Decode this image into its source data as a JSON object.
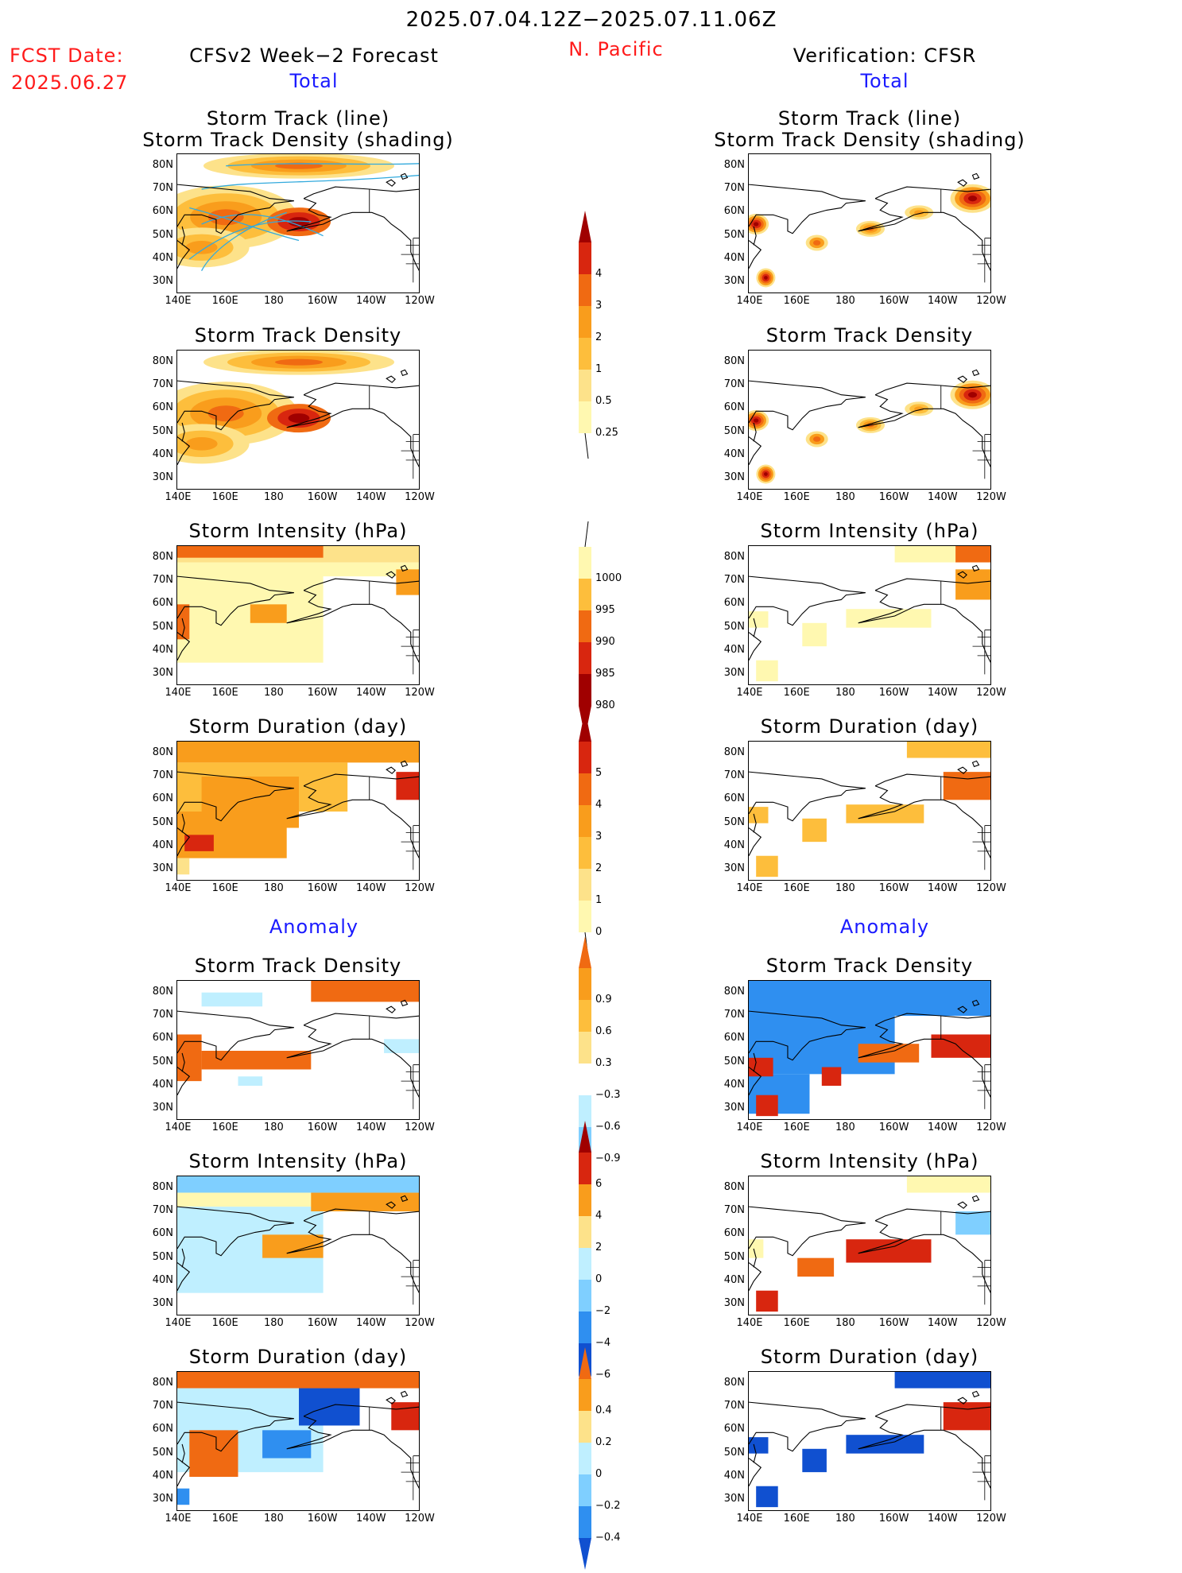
{
  "header": {
    "period": "2025.07.04.12Z−2025.07.11.06Z",
    "fcst_label": "FCST Date:",
    "fcst_date": "2025.06.27",
    "left_title": "CFSv2 Week−2 Forecast",
    "region": "N. Pacific",
    "right_title": "Verification: CFSR",
    "total_label": "Total",
    "anomaly_label": "Anomaly"
  },
  "panel_titles": {
    "track_line": "Storm Track (line)",
    "track_shading": "Storm Track Density (shading)",
    "density": "Storm Track Density",
    "intensity": "Storm Intensity (hPa)",
    "duration": "Storm Duration (day)"
  },
  "axes": {
    "lat_ticks": [
      "80N",
      "70N",
      "60N",
      "50N",
      "40N",
      "30N"
    ],
    "lon_ticks": [
      "140E",
      "160E",
      "180",
      "160W",
      "140W",
      "120W"
    ]
  },
  "colors": {
    "warm": [
      "#fff8b0",
      "#fde28a",
      "#fdbe3c",
      "#f99d1c",
      "#f06a12",
      "#d8260f",
      "#a00000"
    ],
    "cool": [
      "#bfefff",
      "#7fcfff",
      "#2f8ff0",
      "#1050d0"
    ],
    "track_line": "#33aadd"
  },
  "chart_data": [
    {
      "type": "heatmap",
      "title": "Storm Track Density",
      "subtitle": "CFSv2 Week-2 Forecast, Total",
      "colorbar_levels": [
        "0.25",
        "0.5",
        "1",
        "2",
        "3",
        "4"
      ],
      "xlim": [
        140,
        240
      ],
      "ylim": [
        25,
        85
      ],
      "features": [
        {
          "lon": 190,
          "lat": 56,
          "value": 3.5
        },
        {
          "lon": 160,
          "lat": 60,
          "value": 2.5
        },
        {
          "lon": 195,
          "lat": 80,
          "value": 2.5
        },
        {
          "lon": 150,
          "lat": 45,
          "value": 2
        }
      ]
    },
    {
      "type": "heatmap",
      "title": "Storm Track Density",
      "subtitle": "Verification: CFSR, Total",
      "colorbar_levels": [
        "0.25",
        "0.5",
        "1",
        "2",
        "3",
        "4"
      ],
      "xlim": [
        140,
        240
      ],
      "ylim": [
        25,
        85
      ],
      "features": [
        {
          "lon": 147,
          "lat": 32,
          "value": 4
        },
        {
          "lon": 143,
          "lat": 55,
          "value": 4
        },
        {
          "lon": 168,
          "lat": 47,
          "value": 3
        },
        {
          "lon": 190,
          "lat": 53,
          "value": 2.5
        },
        {
          "lon": 210,
          "lat": 60,
          "value": 2
        },
        {
          "lon": 232,
          "lat": 66,
          "value": 4
        }
      ]
    },
    {
      "type": "heatmap",
      "title": "Storm Intensity (hPa)",
      "colorbar_levels": [
        "980",
        "985",
        "990",
        "995",
        "1000"
      ],
      "xlim": [
        140,
        240
      ],
      "ylim": [
        25,
        85
      ]
    },
    {
      "type": "heatmap",
      "title": "Storm Duration (day)",
      "colorbar_levels": [
        "0",
        "1",
        "2",
        "3",
        "4",
        "5"
      ],
      "xlim": [
        140,
        240
      ],
      "ylim": [
        25,
        85
      ]
    },
    {
      "type": "heatmap",
      "title": "Storm Track Density Anomaly",
      "colorbar_levels": [
        "−0.9",
        "−0.6",
        "−0.3",
        "0.3",
        "0.6",
        "0.9"
      ],
      "xlim": [
        140,
        240
      ],
      "ylim": [
        25,
        85
      ]
    },
    {
      "type": "heatmap",
      "title": "Storm Intensity Anomaly (hPa)",
      "colorbar_levels": [
        "−6",
        "−4",
        "−2",
        "0",
        "2",
        "4",
        "6"
      ],
      "xlim": [
        140,
        240
      ],
      "ylim": [
        25,
        85
      ]
    },
    {
      "type": "heatmap",
      "title": "Storm Duration Anomaly (day)",
      "colorbar_levels": [
        "−0.4",
        "−0.2",
        "0",
        "0.2",
        "0.4"
      ],
      "xlim": [
        140,
        240
      ],
      "ylim": [
        25,
        85
      ]
    }
  ],
  "colorbars": {
    "density": [
      "4",
      "3",
      "2",
      "1",
      "0.5",
      "0.25"
    ],
    "intensity": [
      "1000",
      "995",
      "990",
      "985",
      "980"
    ],
    "duration": [
      "5",
      "4",
      "3",
      "2",
      "1",
      "0"
    ],
    "density_anom": [
      "0.9",
      "0.6",
      "0.3",
      "−0.3",
      "−0.6",
      "−0.9"
    ],
    "intensity_anom": [
      "6",
      "4",
      "2",
      "0",
      "−2",
      "−4",
      "−6"
    ],
    "duration_anom": [
      "0.4",
      "0.2",
      "0",
      "−0.2",
      "−0.4"
    ]
  }
}
